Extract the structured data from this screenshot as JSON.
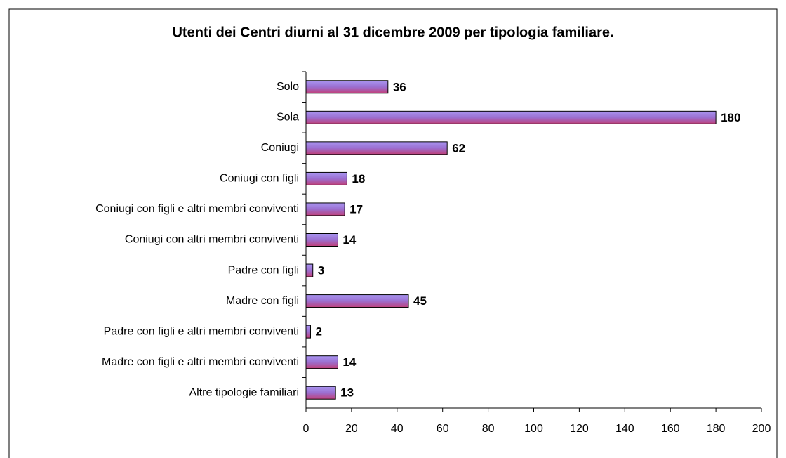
{
  "chart_data": {
    "type": "bar",
    "orientation": "horizontal",
    "title": "Utenti dei Centri diurni al 31 dicembre 2009 per tipologia familiare.",
    "categories": [
      "Solo",
      "Sola",
      "Coniugi",
      "Coniugi con figli",
      "Coniugi con figli e altri membri conviventi",
      "Coniugi con altri membri conviventi",
      "Padre con figli",
      "Madre con figli",
      "Padre con figli e altri membri conviventi",
      "Madre con figli e altri membri conviventi",
      "Altre tipologie familiari"
    ],
    "values": [
      36,
      180,
      62,
      18,
      17,
      14,
      3,
      45,
      2,
      14,
      13
    ],
    "color": "#8e6fd8",
    "xlim": [
      0,
      200
    ],
    "xticks": [
      0,
      20,
      40,
      60,
      80,
      100,
      120,
      140,
      160,
      180,
      200
    ],
    "grid": false
  }
}
